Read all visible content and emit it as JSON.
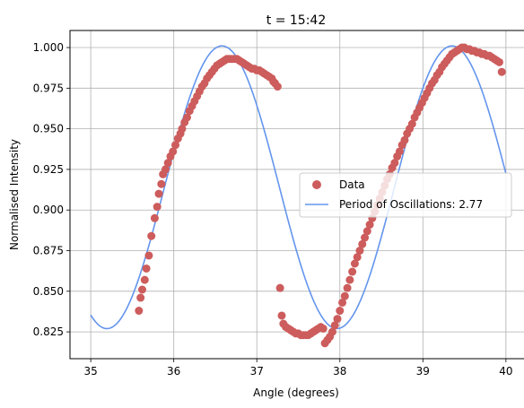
{
  "chart_data": {
    "type": "scatter",
    "title": "t = 15:42",
    "xlabel": "Angle (degrees)",
    "ylabel": "Normalised Intensity",
    "xlim": [
      34.75,
      40.25
    ],
    "ylim": [
      0.8085,
      1.0105
    ],
    "xticks": [
      35,
      36,
      37,
      38,
      39,
      40
    ],
    "yticks": [
      0.825,
      0.85,
      0.875,
      0.9,
      0.925,
      0.95,
      0.975,
      1.0
    ],
    "xtick_labels": [
      "35",
      "36",
      "37",
      "38",
      "39",
      "40"
    ],
    "ytick_labels": [
      "0.825",
      "0.850",
      "0.875",
      "0.900",
      "0.925",
      "0.950",
      "0.975",
      "1.000"
    ],
    "grid": true,
    "legend_position": "center-right",
    "colors": {
      "data": "#cd5c5c",
      "fit": "#6495ed"
    },
    "series": [
      {
        "name": "Data",
        "kind": "scatter",
        "points": [
          [
            35.58,
            0.838
          ],
          [
            35.6,
            0.846
          ],
          [
            35.62,
            0.851
          ],
          [
            35.65,
            0.857
          ],
          [
            35.67,
            0.864
          ],
          [
            35.7,
            0.872
          ],
          [
            35.73,
            0.884
          ],
          [
            35.77,
            0.895
          ],
          [
            35.8,
            0.902
          ],
          [
            35.82,
            0.91
          ],
          [
            35.85,
            0.916
          ],
          [
            35.87,
            0.922
          ],
          [
            35.9,
            0.925
          ],
          [
            35.93,
            0.929
          ],
          [
            35.96,
            0.933
          ],
          [
            35.99,
            0.936
          ],
          [
            36.02,
            0.94
          ],
          [
            36.05,
            0.944
          ],
          [
            36.08,
            0.947
          ],
          [
            36.1,
            0.95
          ],
          [
            36.13,
            0.954
          ],
          [
            36.16,
            0.957
          ],
          [
            36.19,
            0.961
          ],
          [
            36.22,
            0.964
          ],
          [
            36.25,
            0.967
          ],
          [
            36.28,
            0.97
          ],
          [
            36.31,
            0.973
          ],
          [
            36.34,
            0.976
          ],
          [
            36.37,
            0.978
          ],
          [
            36.4,
            0.981
          ],
          [
            36.43,
            0.983
          ],
          [
            36.46,
            0.985
          ],
          [
            36.49,
            0.987
          ],
          [
            36.52,
            0.989
          ],
          [
            36.55,
            0.99
          ],
          [
            36.58,
            0.991
          ],
          [
            36.61,
            0.992
          ],
          [
            36.64,
            0.993
          ],
          [
            36.67,
            0.993
          ],
          [
            36.7,
            0.993
          ],
          [
            36.73,
            0.993
          ],
          [
            36.76,
            0.993
          ],
          [
            36.79,
            0.992
          ],
          [
            36.82,
            0.991
          ],
          [
            36.85,
            0.99
          ],
          [
            36.88,
            0.989
          ],
          [
            36.91,
            0.988
          ],
          [
            36.94,
            0.987
          ],
          [
            36.97,
            0.987
          ],
          [
            37.0,
            0.986
          ],
          [
            37.03,
            0.986
          ],
          [
            37.06,
            0.985
          ],
          [
            37.09,
            0.984
          ],
          [
            37.12,
            0.983
          ],
          [
            37.15,
            0.982
          ],
          [
            37.18,
            0.981
          ],
          [
            37.2,
            0.979
          ],
          [
            37.22,
            0.978
          ],
          [
            37.25,
            0.976
          ],
          [
            37.28,
            0.852
          ],
          [
            37.3,
            0.835
          ],
          [
            37.32,
            0.83
          ],
          [
            37.35,
            0.828
          ],
          [
            37.38,
            0.827
          ],
          [
            37.41,
            0.826
          ],
          [
            37.44,
            0.825
          ],
          [
            37.47,
            0.824
          ],
          [
            37.5,
            0.824
          ],
          [
            37.53,
            0.823
          ],
          [
            37.56,
            0.823
          ],
          [
            37.59,
            0.823
          ],
          [
            37.62,
            0.823
          ],
          [
            37.65,
            0.824
          ],
          [
            37.68,
            0.825
          ],
          [
            37.71,
            0.826
          ],
          [
            37.74,
            0.827
          ],
          [
            37.77,
            0.828
          ],
          [
            37.8,
            0.827
          ],
          [
            37.82,
            0.818
          ],
          [
            37.85,
            0.82
          ],
          [
            37.88,
            0.822
          ],
          [
            37.91,
            0.825
          ],
          [
            37.94,
            0.829
          ],
          [
            37.97,
            0.833
          ],
          [
            38.0,
            0.838
          ],
          [
            38.03,
            0.843
          ],
          [
            38.06,
            0.847
          ],
          [
            38.09,
            0.852
          ],
          [
            38.12,
            0.857
          ],
          [
            38.15,
            0.862
          ],
          [
            38.18,
            0.867
          ],
          [
            38.21,
            0.871
          ],
          [
            38.24,
            0.875
          ],
          [
            38.27,
            0.879
          ],
          [
            38.3,
            0.883
          ],
          [
            38.33,
            0.887
          ],
          [
            38.36,
            0.891
          ],
          [
            38.39,
            0.895
          ],
          [
            38.42,
            0.899
          ],
          [
            38.45,
            0.903
          ],
          [
            38.48,
            0.907
          ],
          [
            38.51,
            0.911
          ],
          [
            38.54,
            0.915
          ],
          [
            38.57,
            0.919
          ],
          [
            38.6,
            0.922
          ],
          [
            38.63,
            0.926
          ],
          [
            38.66,
            0.929
          ],
          [
            38.69,
            0.933
          ],
          [
            38.72,
            0.936
          ],
          [
            38.75,
            0.94
          ],
          [
            38.78,
            0.943
          ],
          [
            38.81,
            0.947
          ],
          [
            38.84,
            0.95
          ],
          [
            38.87,
            0.953
          ],
          [
            38.9,
            0.957
          ],
          [
            38.93,
            0.96
          ],
          [
            38.96,
            0.963
          ],
          [
            38.99,
            0.966
          ],
          [
            39.02,
            0.969
          ],
          [
            39.05,
            0.972
          ],
          [
            39.08,
            0.975
          ],
          [
            39.11,
            0.978
          ],
          [
            39.14,
            0.98
          ],
          [
            39.17,
            0.983
          ],
          [
            39.2,
            0.985
          ],
          [
            39.23,
            0.988
          ],
          [
            39.26,
            0.99
          ],
          [
            39.29,
            0.992
          ],
          [
            39.32,
            0.994
          ],
          [
            39.35,
            0.996
          ],
          [
            39.38,
            0.997
          ],
          [
            39.41,
            0.998
          ],
          [
            39.44,
            0.999
          ],
          [
            39.47,
            1.0
          ],
          [
            39.5,
            1.0
          ],
          [
            39.53,
            0.999
          ],
          [
            39.56,
            0.999
          ],
          [
            39.59,
            0.998
          ],
          [
            39.62,
            0.998
          ],
          [
            39.65,
            0.997
          ],
          [
            39.68,
            0.997
          ],
          [
            39.71,
            0.996
          ],
          [
            39.74,
            0.996
          ],
          [
            39.77,
            0.995
          ],
          [
            39.8,
            0.995
          ],
          [
            39.83,
            0.994
          ],
          [
            39.86,
            0.993
          ],
          [
            39.89,
            0.992
          ],
          [
            39.92,
            0.991
          ],
          [
            39.95,
            0.985
          ]
        ]
      },
      {
        "name": "Period of Oscillations: 2.77",
        "kind": "line",
        "model": {
          "x_start": 35.0,
          "x_end": 40.0,
          "center": 0.914,
          "amplitude": 0.087,
          "period": 2.77,
          "peak_x": 36.58
        }
      }
    ]
  }
}
